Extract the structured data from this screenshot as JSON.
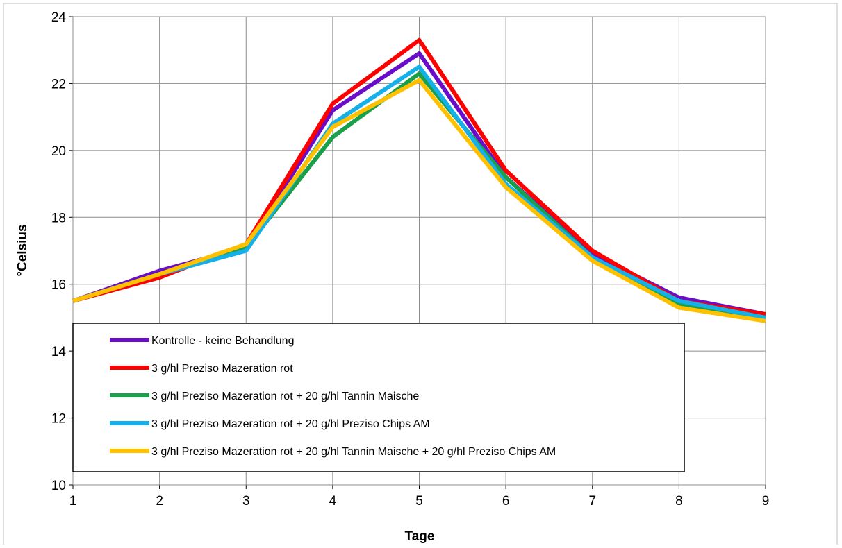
{
  "chart_data": {
    "type": "line",
    "title": "",
    "xlabel": "Tage",
    "ylabel": "°Celsius",
    "x": [
      1,
      2,
      3,
      4,
      5,
      6,
      7,
      8,
      9
    ],
    "xlim": [
      1,
      9
    ],
    "ylim": [
      10,
      24
    ],
    "yticks": [
      10,
      12,
      14,
      16,
      18,
      20,
      22,
      24
    ],
    "grid": true,
    "legend_position": "bottom",
    "series": [
      {
        "name": "Kontrolle - keine Behandlung",
        "color": "#6a0dc8",
        "values": [
          15.5,
          16.4,
          17.1,
          21.2,
          22.9,
          19.2,
          16.9,
          15.6,
          15.1
        ]
      },
      {
        "name": "3 g/hl Preziso Mazeration rot",
        "color": "#ff0000",
        "values": [
          15.5,
          16.2,
          17.2,
          21.4,
          23.3,
          19.4,
          17.0,
          15.5,
          15.1
        ]
      },
      {
        "name": "3 g/hl Preziso Mazeration rot + 20 g/hl Tannin Maische",
        "color": "#1aa04a",
        "values": [
          15.5,
          16.3,
          17.1,
          20.4,
          22.3,
          19.2,
          16.8,
          15.4,
          15.0
        ]
      },
      {
        "name": "3 g/hl Preziso Mazeration rot + 20 g/hl Preziso Chips AM",
        "color": "#16b0e8",
        "values": [
          15.5,
          16.3,
          17.0,
          20.8,
          22.5,
          19.0,
          16.8,
          15.5,
          15.0
        ]
      },
      {
        "name": "3 g/hl Preziso Mazeration rot + 20 g/hl Tannin Maische + 20 g/hl Preziso Chips AM",
        "color": "#ffc000",
        "values": [
          15.5,
          16.3,
          17.2,
          20.7,
          22.1,
          18.9,
          16.7,
          15.3,
          14.9
        ]
      }
    ]
  }
}
